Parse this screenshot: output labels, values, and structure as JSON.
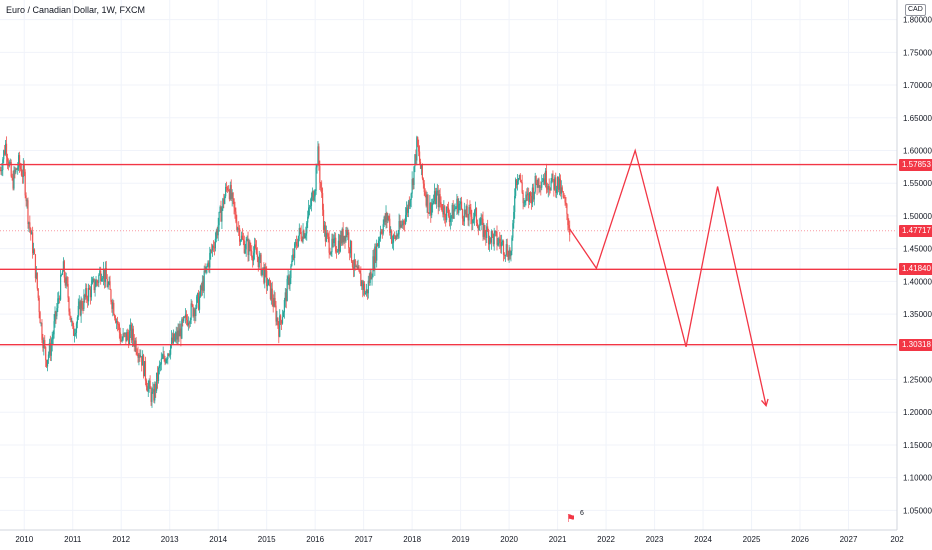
{
  "header": {
    "title": "Euro / Canadian Dollar, 1W, FXCM",
    "currency": "CAD"
  },
  "colors": {
    "up": "#26a69a",
    "down": "#ef5350",
    "annotation": "#f23645",
    "grid": "#f0f3fa",
    "axis_text": "#131722"
  },
  "events": {
    "icon": "flag-event-icon",
    "count": "6"
  },
  "chart_data": {
    "type": "candlestick",
    "title": "Euro / Canadian Dollar, 1W, FXCM",
    "xlabel": "",
    "ylabel": "",
    "ylim": [
      1.02,
      1.83
    ],
    "xlim": [
      2009.5,
      2028.0
    ],
    "x_ticks": [
      "2010",
      "2011",
      "2012",
      "2013",
      "2014",
      "2015",
      "2016",
      "2017",
      "2018",
      "2019",
      "2020",
      "2021",
      "2022",
      "2023",
      "2024",
      "2025",
      "2026",
      "2027",
      "202"
    ],
    "y_ticks": [
      1.05,
      1.1,
      1.15,
      1.2,
      1.25,
      1.3,
      1.35,
      1.4,
      1.45,
      1.5,
      1.55,
      1.6,
      1.65,
      1.7,
      1.75,
      1.8
    ],
    "y_tick_labels": [
      "1.05000",
      "1.10000",
      "1.15000",
      "1.20000",
      "1.25000",
      "1.30000",
      "1.35000",
      "1.40000",
      "1.45000",
      "1.50000",
      "1.55000",
      "1.60000",
      "1.65000",
      "1.70000",
      "1.75000",
      "1.80000"
    ],
    "price_path": [
      [
        2009.5,
        1.57
      ],
      [
        2009.62,
        1.61
      ],
      [
        2009.75,
        1.55
      ],
      [
        2009.88,
        1.58
      ],
      [
        2010.0,
        1.56
      ],
      [
        2010.08,
        1.5
      ],
      [
        2010.2,
        1.44
      ],
      [
        2010.35,
        1.33
      ],
      [
        2010.45,
        1.28
      ],
      [
        2010.55,
        1.3
      ],
      [
        2010.7,
        1.37
      ],
      [
        2010.8,
        1.42
      ],
      [
        2010.9,
        1.38
      ],
      [
        2011.0,
        1.32
      ],
      [
        2011.15,
        1.36
      ],
      [
        2011.3,
        1.38
      ],
      [
        2011.5,
        1.4
      ],
      [
        2011.6,
        1.42
      ],
      [
        2011.7,
        1.4
      ],
      [
        2011.85,
        1.36
      ],
      [
        2012.0,
        1.31
      ],
      [
        2012.2,
        1.32
      ],
      [
        2012.4,
        1.29
      ],
      [
        2012.55,
        1.24
      ],
      [
        2012.65,
        1.22
      ],
      [
        2012.8,
        1.27
      ],
      [
        2013.0,
        1.3
      ],
      [
        2013.2,
        1.32
      ],
      [
        2013.4,
        1.35
      ],
      [
        2013.6,
        1.37
      ],
      [
        2013.8,
        1.43
      ],
      [
        2013.95,
        1.47
      ],
      [
        2014.1,
        1.52
      ],
      [
        2014.2,
        1.55
      ],
      [
        2014.35,
        1.5
      ],
      [
        2014.5,
        1.46
      ],
      [
        2014.65,
        1.45
      ],
      [
        2014.8,
        1.44
      ],
      [
        2014.95,
        1.41
      ],
      [
        2015.1,
        1.38
      ],
      [
        2015.25,
        1.33
      ],
      [
        2015.35,
        1.36
      ],
      [
        2015.5,
        1.42
      ],
      [
        2015.65,
        1.47
      ],
      [
        2015.8,
        1.48
      ],
      [
        2016.0,
        1.55
      ],
      [
        2016.05,
        1.6
      ],
      [
        2016.2,
        1.47
      ],
      [
        2016.35,
        1.45
      ],
      [
        2016.5,
        1.46
      ],
      [
        2016.65,
        1.48
      ],
      [
        2016.8,
        1.42
      ],
      [
        2016.95,
        1.4
      ],
      [
        2017.05,
        1.38
      ],
      [
        2017.2,
        1.43
      ],
      [
        2017.35,
        1.48
      ],
      [
        2017.5,
        1.5
      ],
      [
        2017.6,
        1.46
      ],
      [
        2017.75,
        1.48
      ],
      [
        2017.9,
        1.51
      ],
      [
        2018.0,
        1.55
      ],
      [
        2018.1,
        1.61
      ],
      [
        2018.2,
        1.56
      ],
      [
        2018.35,
        1.51
      ],
      [
        2018.5,
        1.53
      ],
      [
        2018.65,
        1.51
      ],
      [
        2018.8,
        1.5
      ],
      [
        2018.95,
        1.52
      ],
      [
        2019.1,
        1.5
      ],
      [
        2019.3,
        1.5
      ],
      [
        2019.45,
        1.48
      ],
      [
        2019.6,
        1.47
      ],
      [
        2019.8,
        1.46
      ],
      [
        2019.95,
        1.45
      ],
      [
        2020.05,
        1.44
      ],
      [
        2020.12,
        1.55
      ],
      [
        2020.2,
        1.57
      ],
      [
        2020.3,
        1.52
      ],
      [
        2020.45,
        1.53
      ],
      [
        2020.55,
        1.55
      ],
      [
        2020.7,
        1.56
      ],
      [
        2020.85,
        1.55
      ],
      [
        2021.0,
        1.55
      ],
      [
        2021.1,
        1.53
      ],
      [
        2021.2,
        1.5
      ],
      [
        2021.25,
        1.48
      ]
    ],
    "horizontal_levels": [
      {
        "value": 1.57853,
        "label": "1.57853"
      },
      {
        "value": 1.4184,
        "label": "1.41840"
      },
      {
        "value": 1.30318,
        "label": "1.30318"
      }
    ],
    "last_price": {
      "value": 1.47717,
      "label": "1.47717"
    },
    "projection_path": [
      [
        2021.25,
        1.48
      ],
      [
        2021.8,
        1.42
      ],
      [
        2022.6,
        1.6
      ],
      [
        2023.65,
        1.3
      ],
      [
        2024.3,
        1.545
      ],
      [
        2025.3,
        1.21
      ]
    ]
  }
}
